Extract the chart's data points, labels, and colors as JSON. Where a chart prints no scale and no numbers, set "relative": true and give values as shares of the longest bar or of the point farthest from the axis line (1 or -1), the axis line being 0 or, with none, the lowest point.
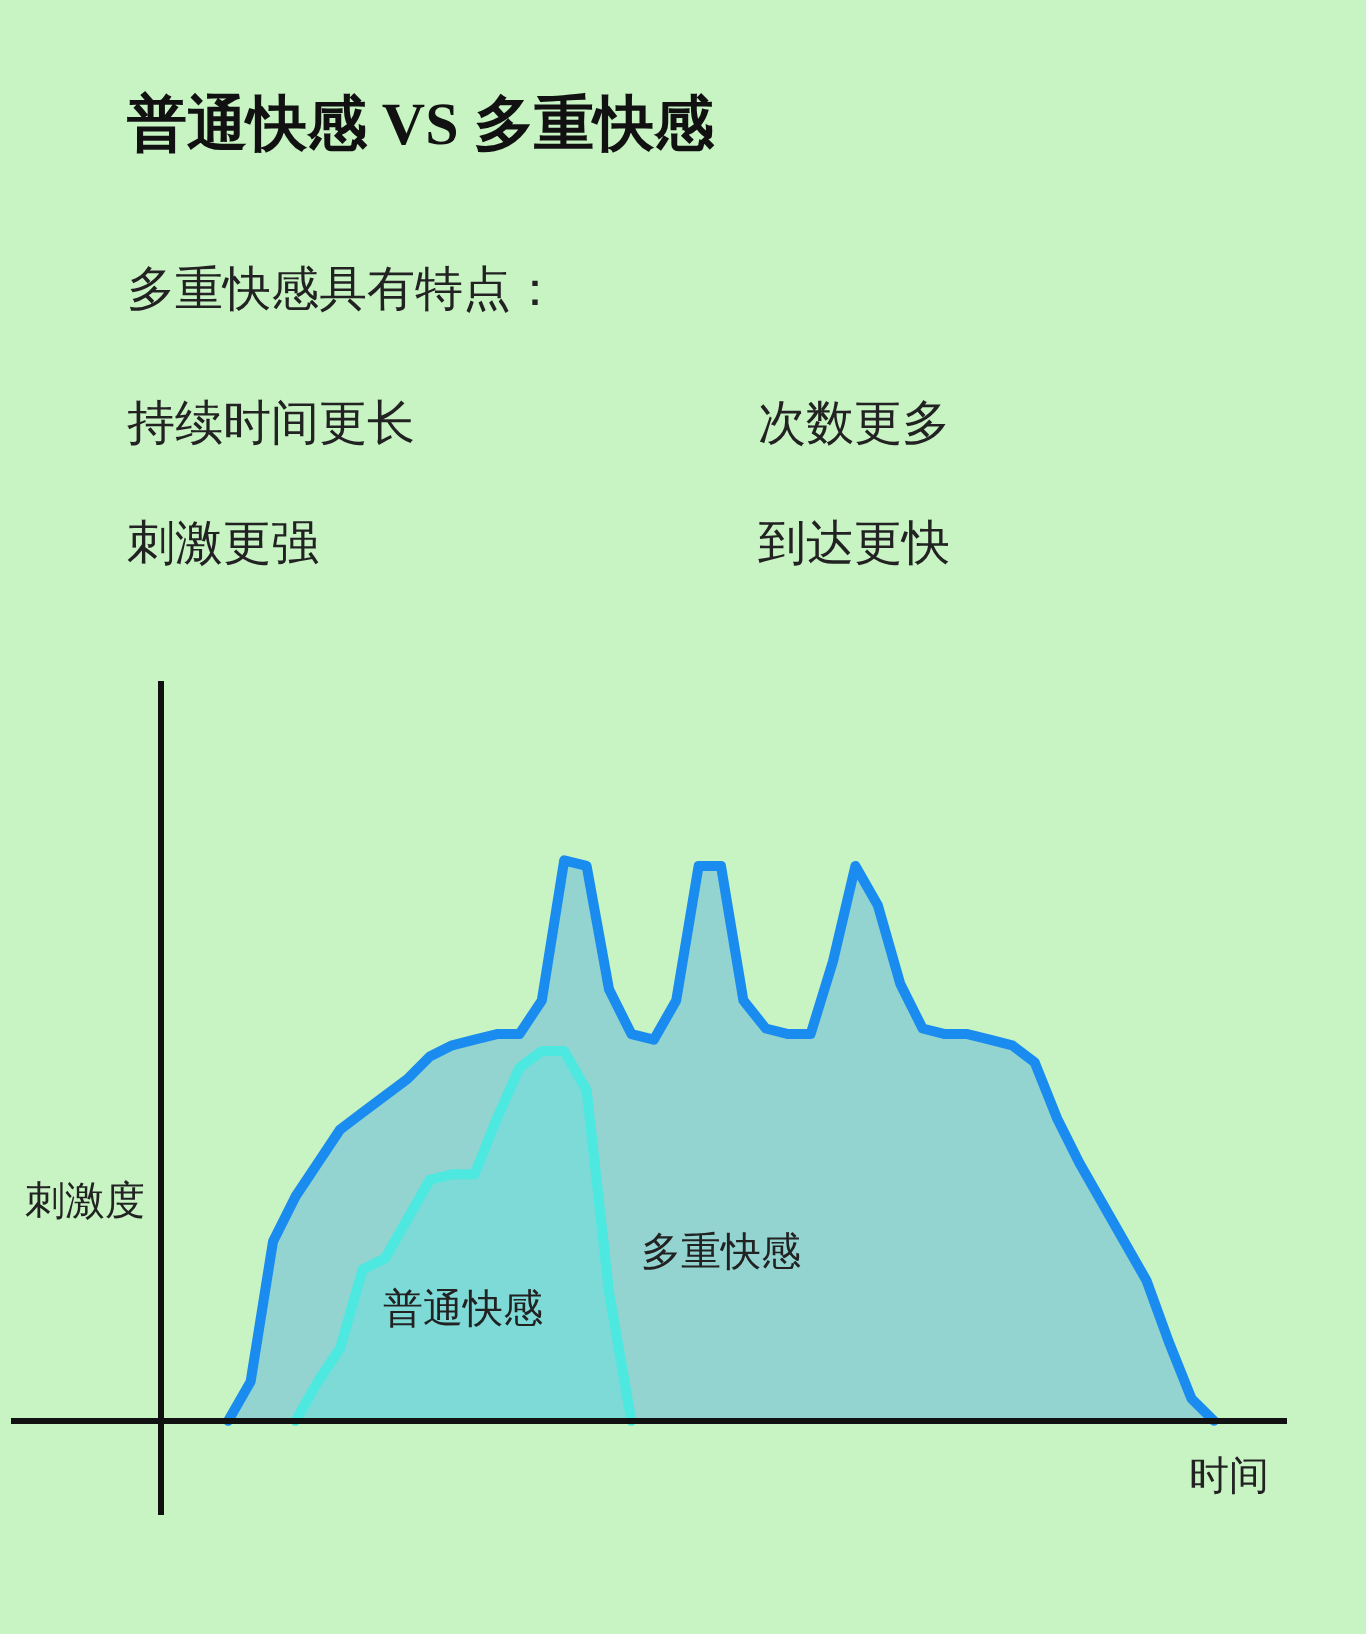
{
  "chart_data": {
    "type": "area",
    "relative": true,
    "title": "普通快感 VS 多重快感",
    "subtitle": "多重快感具有特点：",
    "annotations": [
      "持续时间更长",
      "次数更多",
      "刺激更强",
      "到达更快"
    ],
    "ylabel": "刺激度",
    "xlabel": "时间",
    "categories": [
      null,
      null,
      null,
      null,
      null,
      null,
      null,
      null,
      null,
      null,
      null,
      null,
      null,
      null,
      null,
      null,
      null,
      null,
      null,
      null,
      null,
      null,
      null,
      null,
      null,
      null,
      null,
      null,
      null,
      null,
      null,
      null,
      null,
      null,
      null,
      null,
      null,
      null,
      null,
      null,
      null,
      null,
      null,
      null,
      null
    ],
    "series": [
      {
        "name": "多重快感",
        "color": "#1a8cf0",
        "values": [
          0,
          0.07,
          0.32,
          0.4,
          0.46,
          0.52,
          0.55,
          0.58,
          0.61,
          0.65,
          0.67,
          0.68,
          0.69,
          0.69,
          0.75,
          1.0,
          0.99,
          0.77,
          0.69,
          0.68,
          0.75,
          0.99,
          0.99,
          0.75,
          0.7,
          0.69,
          0.69,
          0.82,
          0.99,
          0.92,
          0.78,
          0.7,
          0.69,
          0.69,
          0.68,
          0.67,
          0.64,
          0.54,
          0.46,
          0.39,
          0.32,
          0.25,
          0.14,
          0.04,
          0
        ]
      },
      {
        "name": "普通快感",
        "color": "#4de8e0",
        "values": [
          null,
          null,
          null,
          0,
          0.07,
          0.13,
          0.27,
          0.29,
          0.36,
          0.43,
          0.44,
          0.44,
          0.54,
          0.63,
          0.66,
          0.66,
          0.59,
          0.23,
          0,
          null,
          null,
          null,
          null,
          null,
          null,
          null,
          null,
          null,
          null,
          null,
          null,
          null,
          null,
          null,
          null,
          null,
          null,
          null,
          null,
          null,
          null,
          null,
          null,
          null,
          null
        ]
      }
    ]
  }
}
